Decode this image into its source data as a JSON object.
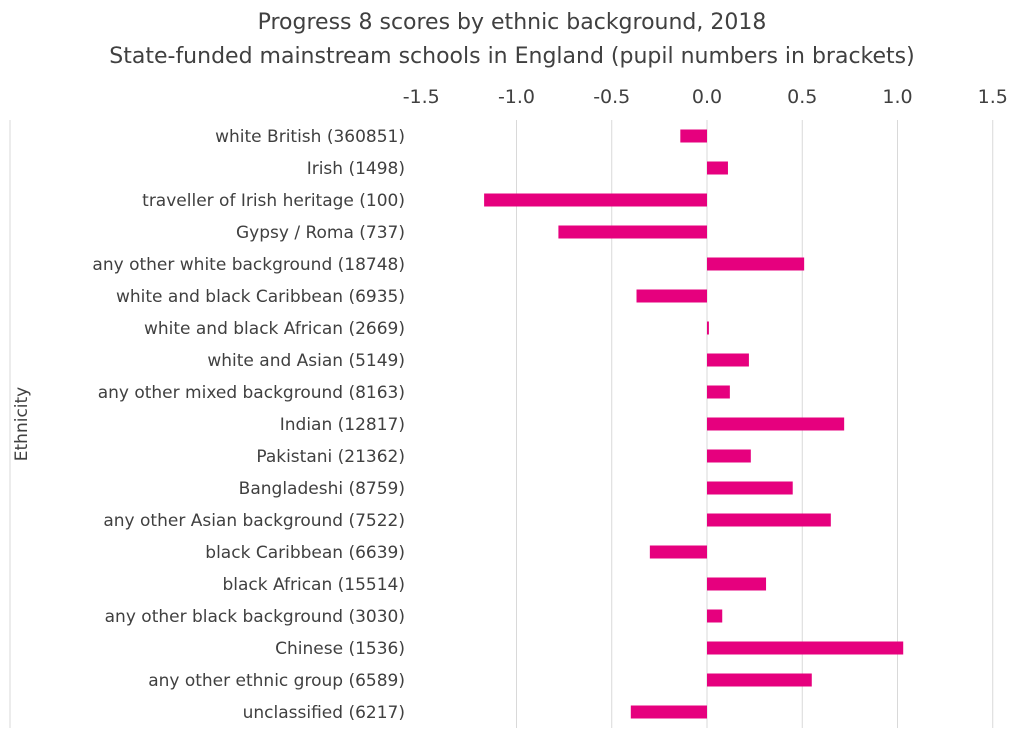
{
  "chart_data": {
    "type": "bar",
    "orientation": "horizontal",
    "title": "Progress 8 scores by ethnic background, 2018",
    "subtitle": "State-funded mainstream schools in England (pupil numbers in brackets)",
    "ylabel": "Ethnicity",
    "xlabel": "",
    "xlim": [
      -1.5,
      1.5
    ],
    "xticks": [
      "-1.5",
      "-1.0",
      "-0.5",
      "0.0",
      "0.5",
      "1.0",
      "1.5"
    ],
    "xtick_values": [
      -1.5,
      -1.0,
      -0.5,
      0.0,
      0.5,
      1.0,
      1.5
    ],
    "x_axis_position": "top",
    "grid": true,
    "bar_color": "#e6007e",
    "categories": [
      "white British (360851)",
      "Irish (1498)",
      "traveller of Irish heritage (100)",
      "Gypsy / Roma (737)",
      "any other white background (18748)",
      "white and black Caribbean (6935)",
      "white and black African (2669)",
      "white and Asian (5149)",
      "any other mixed background (8163)",
      "Indian (12817)",
      "Pakistani (21362)",
      "Bangladeshi (8759)",
      "any other Asian background (7522)",
      "black Caribbean (6639)",
      "black African (15514)",
      "any other black background (3030)",
      "Chinese (1536)",
      "any other ethnic group (6589)",
      "unclassified (6217)"
    ],
    "values": [
      -0.14,
      0.11,
      -1.17,
      -0.78,
      0.51,
      -0.37,
      0.01,
      0.22,
      0.12,
      0.72,
      0.23,
      0.45,
      0.65,
      -0.3,
      0.31,
      0.08,
      1.03,
      0.55,
      -0.4
    ]
  }
}
